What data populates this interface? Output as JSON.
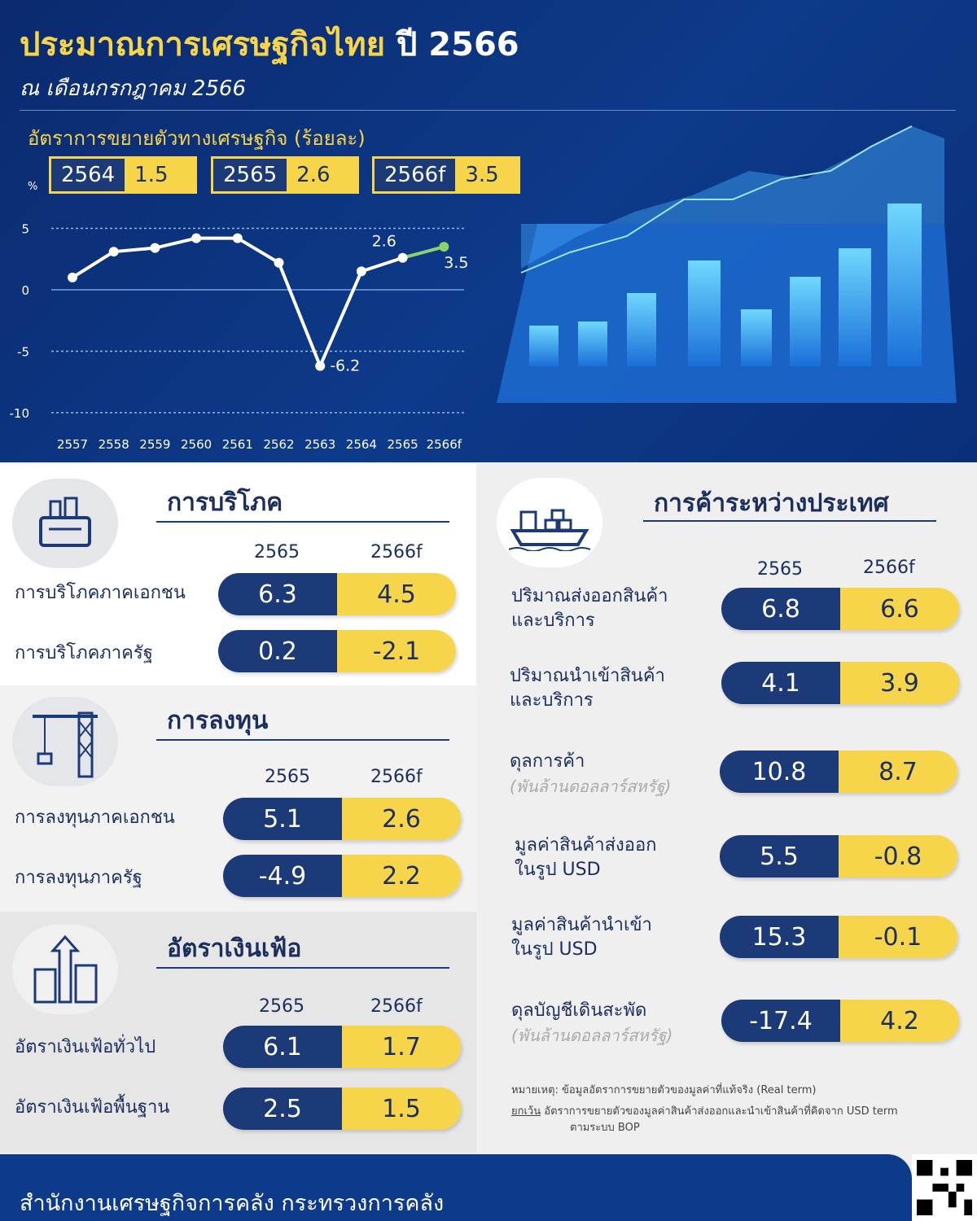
{
  "header": {
    "title": "ประมาณการเศรษฐกิจไทย",
    "title_year": "ปี 2566",
    "subtitle": "ณ เดือนกรกฎาคม 2566",
    "chart_title": "อัตราการขยายตัวทางเศรษฐกิจ (ร้อยละ)",
    "pills": [
      {
        "year": "2564",
        "value": "1.5"
      },
      {
        "year": "2565",
        "value": "2.6"
      },
      {
        "year": "2566f",
        "value": "3.5"
      }
    ]
  },
  "chart_data": {
    "type": "line",
    "ylabel": "%",
    "categories": [
      "2557",
      "2558",
      "2559",
      "2560",
      "2561",
      "2562",
      "2563",
      "2564",
      "2565",
      "2566f"
    ],
    "values": [
      1.0,
      3.1,
      3.4,
      4.2,
      4.2,
      2.2,
      -6.2,
      1.5,
      2.6,
      3.5
    ],
    "ylim": [
      -10,
      5
    ],
    "yticks": [
      "5",
      "0",
      "-5",
      "-10"
    ],
    "data_labels": [
      {
        "category": "2563",
        "text": "-6.2"
      },
      {
        "category": "2565",
        "text": "2.6"
      },
      {
        "category": "2566f",
        "text": "3.5"
      }
    ],
    "grid": true,
    "colors": {
      "actual": "#ffffff",
      "forecast": "#8fd16a"
    }
  },
  "consumption": {
    "title": "การบริโภค",
    "cols": [
      "2565",
      "2566f"
    ],
    "rows": [
      {
        "label": "การบริโภคภาคเอกชน",
        "a": "6.3",
        "b": "4.5"
      },
      {
        "label": "การบริโภคภาครัฐ",
        "a": "0.2",
        "b": "-2.1"
      }
    ]
  },
  "investment": {
    "title": "การลงทุน",
    "cols": [
      "2565",
      "2566f"
    ],
    "rows": [
      {
        "label": "การลงทุนภาคเอกชน",
        "a": "5.1",
        "b": "2.6"
      },
      {
        "label": "การลงทุนภาครัฐ",
        "a": "-4.9",
        "b": "2.2"
      }
    ]
  },
  "inflation": {
    "title": "อัตราเงินเฟ้อ",
    "cols": [
      "2565",
      "2566f"
    ],
    "rows": [
      {
        "label": "อัตราเงินเฟ้อทั่วไป",
        "a": "6.1",
        "b": "1.7"
      },
      {
        "label": "อัตราเงินเฟ้อพื้นฐาน",
        "a": "2.5",
        "b": "1.5"
      }
    ]
  },
  "trade": {
    "title": "การค้าระหว่างประเทศ",
    "cols": [
      "2565",
      "2566f"
    ],
    "rows": [
      {
        "label": "ปริมาณส่งออกสินค้า",
        "label2": "และบริการ",
        "a": "6.8",
        "b": "6.6"
      },
      {
        "label": "ปริมาณนำเข้าสินค้า",
        "label2": "และบริการ",
        "a": "4.1",
        "b": "3.9"
      },
      {
        "label": "ดุลการค้า",
        "unit": "(พันล้านดอลลาร์สหรัฐ)",
        "a": "10.8",
        "b": "8.7"
      },
      {
        "label": "มูลค่าสินค้าส่งออก",
        "label2": "ในรูป USD",
        "a": "5.5",
        "b": "-0.8"
      },
      {
        "label": "มูลค่าสินค้านำเข้า",
        "label2": "ในรูป USD",
        "a": "15.3",
        "b": "-0.1"
      },
      {
        "label": "ดุลบัญชีเดินสะพัด",
        "unit": "(พันล้านดอลลาร์สหรัฐ)",
        "a": "-17.4",
        "b": "4.2"
      }
    ],
    "note1": "หมายเหตุ: ข้อมูลอัตราการขยายตัวของมูลค่าที่แท้จริง (Real term)",
    "note2_u": "ยกเว้น",
    "note2": "อัตราการขยายตัวของมูลค่าสินค้าส่งออกและนำเข้าสินค้าที่คิดจาก USD term",
    "note3": "ตามระบบ BOP"
  },
  "footer": {
    "org": "สำนักงานเศรษฐกิจการคลัง กระทรวงการคลัง"
  },
  "colors": {
    "navy": "#1c3a78",
    "yellow": "#f7d54a",
    "header_bg": "#0d3a8a"
  }
}
